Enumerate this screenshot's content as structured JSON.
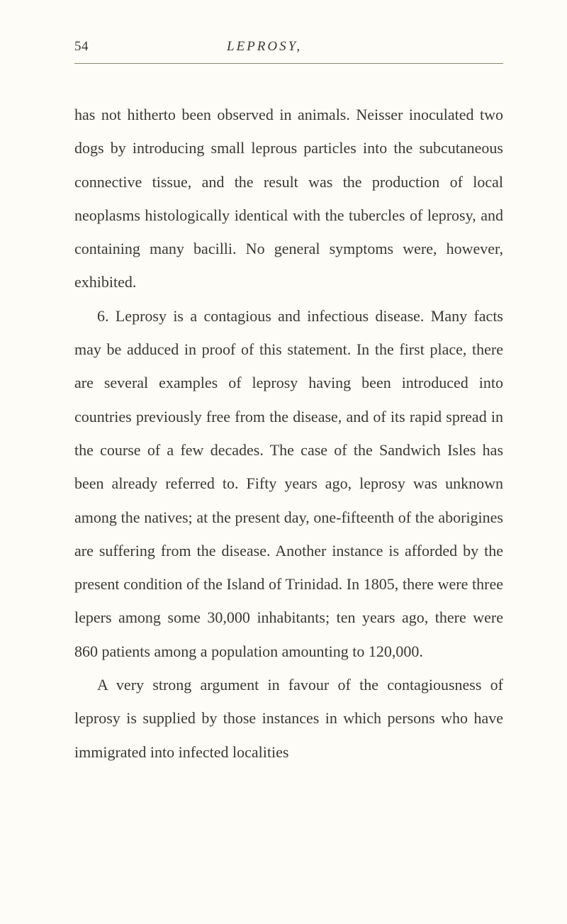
{
  "page": {
    "number": "54",
    "running_title": "LEPROSY,",
    "background_color": "#fdfcf6",
    "text_color": "#3a3832",
    "divider_color": "#8a8878",
    "font_size_body": 22,
    "font_size_header": 19,
    "line_height": 2.15
  },
  "paragraphs": [
    {
      "text": "has not hitherto been observed in animals. Neisser inoculated two dogs by introducing small leprous particles into the subcutaneous connective tissue, and the result was the production of local neoplasms histo­logically identical with the tubercles of leprosy, and containing many bacilli. No general symptoms were, however, exhibited.",
      "indented": false
    },
    {
      "text": "6. Leprosy is a contagious and infectious disease. Many facts may be adduced in proof of this state­ment. In the first place, there are several examples of leprosy having been introduced into countries pre­viously free from the disease, and of its rapid spread in the course of a few decades. The case of the Sandwich Isles has been already referred to. Fifty years ago, leprosy was unknown among the natives; at the present day, one-fifteenth of the aborigines are suffering from the disease. Another instance is afforded by the present condition of the Island of Trinidad. In 1805, there were three lepers among some 30,000 inhabitants; ten years ago, there were 860 patients among a population amounting to 120,000.",
      "indented": true
    },
    {
      "text": "A very strong argument in favour of the contagious­ness of leprosy is supplied by those instances in which persons who have immigrated into infected localities",
      "indented": true
    }
  ]
}
